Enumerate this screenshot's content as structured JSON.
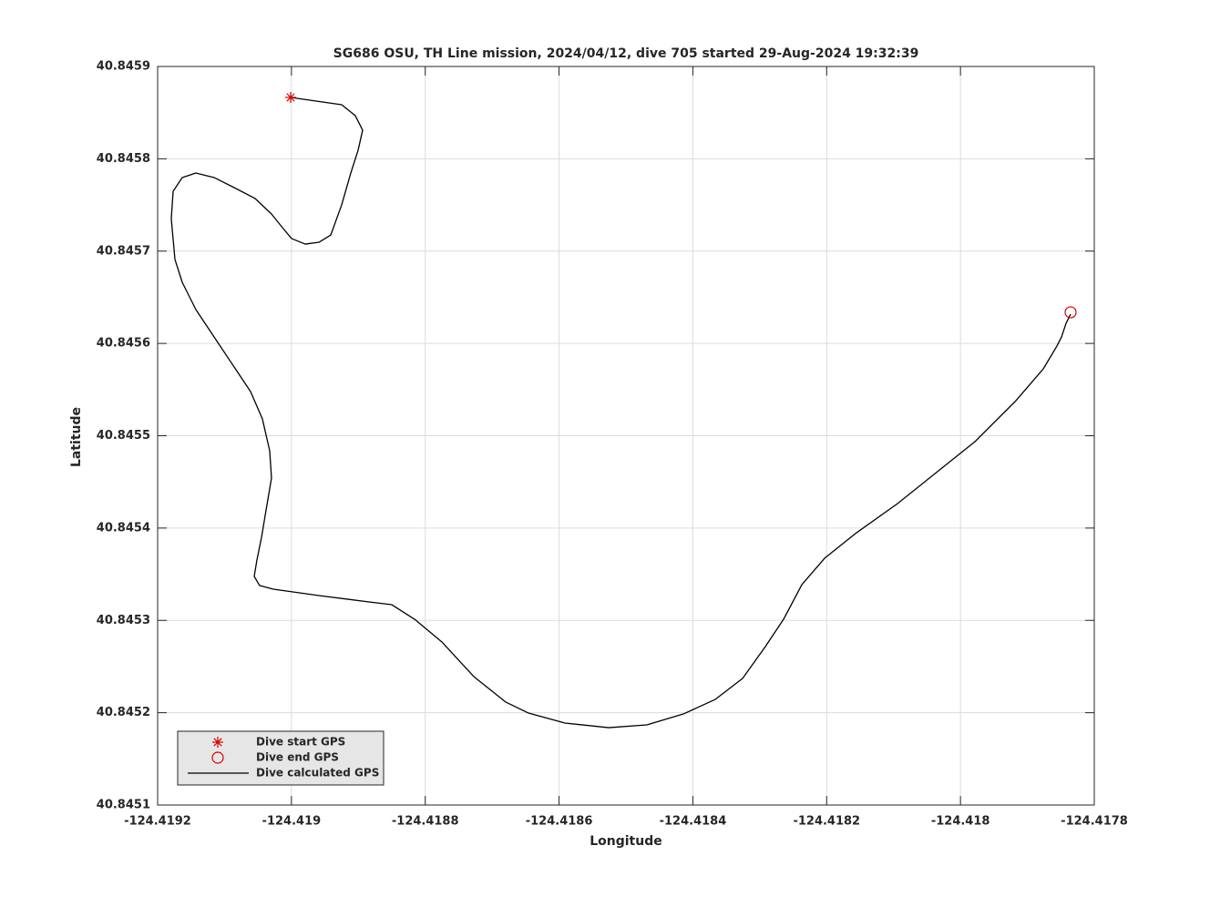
{
  "chart_data": {
    "type": "line",
    "title": "SG686 OSU, TH Line mission, 2024/04/12, dive 705 started 29-Aug-2024 19:32:39",
    "xlabel": "Longitude",
    "ylabel": "Latitude",
    "xlim": [
      -124.4192,
      -124.4178
    ],
    "ylim": [
      40.8451,
      40.8459
    ],
    "xticks": [
      -124.4192,
      -124.419,
      -124.4188,
      -124.4186,
      -124.4184,
      -124.4182,
      -124.418,
      -124.4178
    ],
    "yticks": [
      40.8451,
      40.8452,
      40.8453,
      40.8454,
      40.8455,
      40.8456,
      40.8457,
      40.8458,
      40.8459
    ],
    "grid": true,
    "legend": "lower left",
    "series": [
      {
        "name": "Dive start GPS",
        "color": "#d40000",
        "marker": "asterisk",
        "x": [
          -124.4190012
        ],
        "values": [
          40.8458665
        ]
      },
      {
        "name": "Dive end GPS",
        "color": "#d40000",
        "marker": "circle",
        "x": [
          -124.4178354
        ],
        "values": [
          40.8456337
        ]
      },
      {
        "name": "Dive calculated GPS",
        "color": "#000000",
        "marker": "none",
        "x": [
          -124.4190012,
          -124.4189249,
          -124.4189045,
          -124.4188936,
          -124.4189004,
          -124.4189113,
          -124.4189249,
          -124.4189412,
          -124.4189589,
          -124.4189794,
          -124.4189998,
          -124.4190134,
          -124.4190298,
          -124.4190543,
          -124.4190883,
          -124.4191156,
          -124.4191428,
          -124.4191632,
          -124.4191768,
          -124.4191796,
          -124.4191741,
          -124.4191632,
          -124.4191428,
          -124.4191156,
          -124.4190883,
          -124.4190611,
          -124.4190434,
          -124.4190325,
          -124.4190298,
          -124.4190379,
          -124.4190447,
          -124.4190516,
          -124.4190556,
          -124.4190475,
          -124.419027,
          -124.4189589,
          -124.418884,
          -124.41885,
          -124.4188159,
          -124.4187751,
          -124.4187274,
          -124.4186797,
          -124.4186457,
          -124.4185912,
          -124.4185259,
          -124.4184687,
          -124.4184142,
          -124.4183665,
          -124.4183257,
          -124.4182916,
          -124.4182644,
          -124.4182371,
          -124.4182031,
          -124.4181554,
          -124.4180941,
          -124.4180329,
          -124.4179784,
          -124.4179171,
          -124.4178762,
          -124.4178558,
          -124.417849,
          -124.4178422,
          -124.4178354
        ],
        "values": [
          40.8458665,
          40.8458586,
          40.8458467,
          40.845831,
          40.8458092,
          40.8457846,
          40.8457501,
          40.8457175,
          40.8457096,
          40.8457076,
          40.8457136,
          40.8457254,
          40.8457402,
          40.845757,
          40.8457698,
          40.8457797,
          40.8457846,
          40.8457797,
          40.8457649,
          40.8457353,
          40.8456909,
          40.8456662,
          40.8456366,
          40.845607,
          40.8455774,
          40.8455478,
          40.8455182,
          40.8454837,
          40.8454541,
          40.8454196,
          40.84539,
          40.8453654,
          40.8453476,
          40.8453377,
          40.8453338,
          40.8453269,
          40.84532,
          40.845317,
          40.8453012,
          40.8452766,
          40.8452391,
          40.8452115,
          40.8451996,
          40.8451888,
          40.8451838,
          40.8451868,
          40.8451986,
          40.8452144,
          40.8452371,
          40.8452716,
          40.8453012,
          40.8453387,
          40.8453673,
          40.8453949,
          40.8454265,
          40.845462,
          40.8454936,
          40.845538,
          40.8455725,
          40.8455972,
          40.845607,
          40.8456218,
          40.8456317
        ]
      }
    ]
  }
}
